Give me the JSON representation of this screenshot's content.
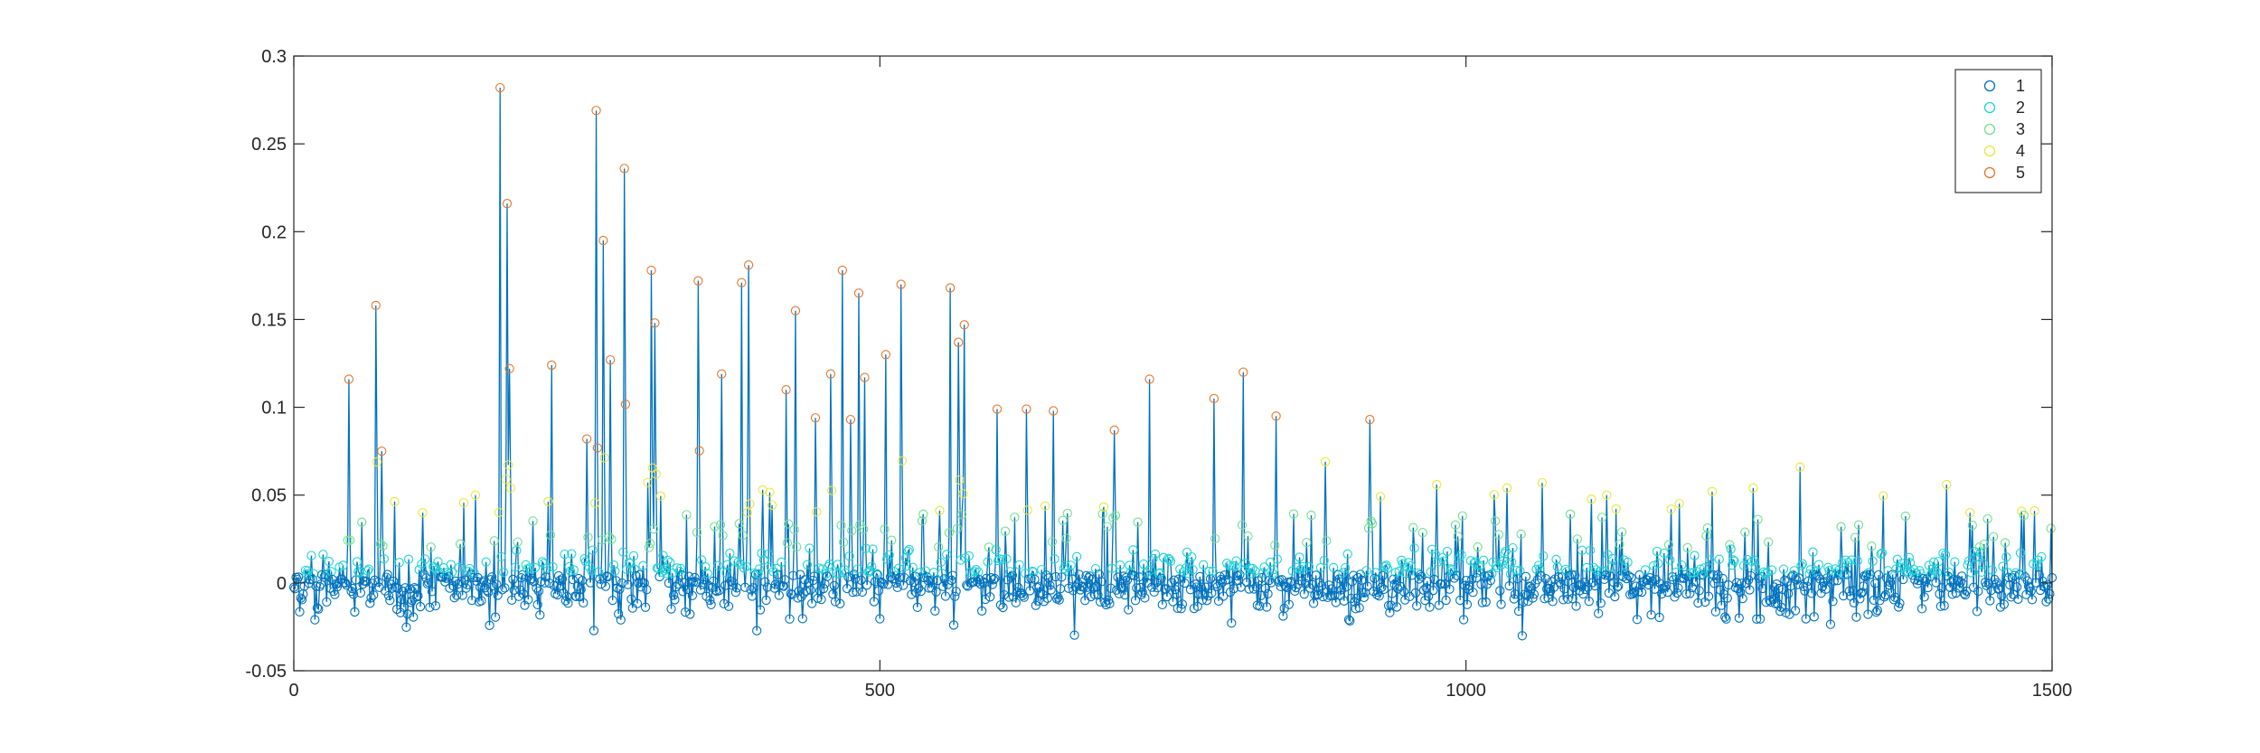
{
  "chart_data": {
    "type": "line",
    "title": "",
    "xlabel": "",
    "ylabel": "",
    "xlim": [
      0,
      1500
    ],
    "ylim": [
      -0.05,
      0.3
    ],
    "xticks": [
      0,
      500,
      1000,
      1500
    ],
    "xtick_labels": [
      "0",
      "500",
      "1000",
      "1500"
    ],
    "yticks": [
      -0.05,
      0,
      0.05,
      0.1,
      0.15,
      0.2,
      0.25,
      0.3
    ],
    "ytick_labels": [
      "-0.05",
      "0",
      "0.05",
      "0.1",
      "0.15",
      "0.2",
      "0.25",
      "0.3"
    ],
    "grid": false,
    "legend_position": "top-right",
    "line_color": "#0072BD",
    "marker": "circle",
    "series": [
      {
        "name": "1",
        "color": "#0072BD"
      },
      {
        "name": "2",
        "color": "#1FD3D6"
      },
      {
        "name": "3",
        "color": "#6FE38A"
      },
      {
        "name": "4",
        "color": "#E8E83A"
      },
      {
        "name": "5",
        "color": "#E8762A"
      }
    ],
    "peaks": [
      {
        "x": 47,
        "y": 0.116
      },
      {
        "x": 70,
        "y": 0.158
      },
      {
        "x": 75,
        "y": 0.075
      },
      {
        "x": 110,
        "y": 0.04
      },
      {
        "x": 155,
        "y": 0.05
      },
      {
        "x": 176,
        "y": 0.282
      },
      {
        "x": 182,
        "y": 0.216
      },
      {
        "x": 184,
        "y": 0.122
      },
      {
        "x": 220,
        "y": 0.124
      },
      {
        "x": 250,
        "y": 0.082
      },
      {
        "x": 258,
        "y": 0.269
      },
      {
        "x": 264,
        "y": 0.195
      },
      {
        "x": 270,
        "y": 0.127
      },
      {
        "x": 282,
        "y": 0.236
      },
      {
        "x": 305,
        "y": 0.178
      },
      {
        "x": 308,
        "y": 0.148
      },
      {
        "x": 345,
        "y": 0.172
      },
      {
        "x": 365,
        "y": 0.119
      },
      {
        "x": 382,
        "y": 0.171
      },
      {
        "x": 388,
        "y": 0.181
      },
      {
        "x": 400,
        "y": 0.053
      },
      {
        "x": 420,
        "y": 0.11
      },
      {
        "x": 428,
        "y": 0.155
      },
      {
        "x": 445,
        "y": 0.094
      },
      {
        "x": 458,
        "y": 0.119
      },
      {
        "x": 468,
        "y": 0.178
      },
      {
        "x": 475,
        "y": 0.093
      },
      {
        "x": 482,
        "y": 0.165
      },
      {
        "x": 487,
        "y": 0.117
      },
      {
        "x": 505,
        "y": 0.13
      },
      {
        "x": 518,
        "y": 0.17
      },
      {
        "x": 560,
        "y": 0.168
      },
      {
        "x": 567,
        "y": 0.137
      },
      {
        "x": 572,
        "y": 0.147
      },
      {
        "x": 600,
        "y": 0.099
      },
      {
        "x": 625,
        "y": 0.099
      },
      {
        "x": 648,
        "y": 0.098
      },
      {
        "x": 700,
        "y": 0.087
      },
      {
        "x": 730,
        "y": 0.116
      },
      {
        "x": 785,
        "y": 0.105
      },
      {
        "x": 810,
        "y": 0.12
      },
      {
        "x": 838,
        "y": 0.095
      },
      {
        "x": 880,
        "y": 0.069
      },
      {
        "x": 918,
        "y": 0.093
      },
      {
        "x": 975,
        "y": 0.056
      },
      {
        "x": 1035,
        "y": 0.054
      },
      {
        "x": 1065,
        "y": 0.057
      },
      {
        "x": 1120,
        "y": 0.05
      },
      {
        "x": 1175,
        "y": 0.042
      },
      {
        "x": 1210,
        "y": 0.052
      },
      {
        "x": 1245,
        "y": 0.054
      },
      {
        "x": 1285,
        "y": 0.066
      },
      {
        "x": 1320,
        "y": 0.032
      },
      {
        "x": 1375,
        "y": 0.038
      },
      {
        "x": 1410,
        "y": 0.056
      },
      {
        "x": 1430,
        "y": 0.04
      },
      {
        "x": 1485,
        "y": 0.041
      }
    ],
    "noise_level": 0.008,
    "n_points": 1500
  }
}
